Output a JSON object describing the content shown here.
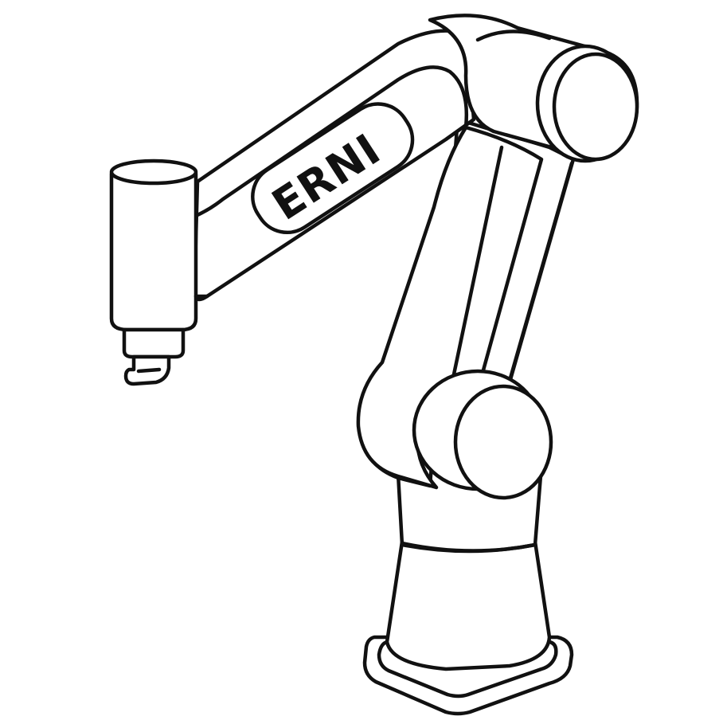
{
  "illustration": {
    "subject": "robot-arm",
    "style": "black line art on white",
    "brand_label": "ERNI",
    "colors": {
      "background": "#ffffff",
      "ink": "#111111"
    }
  }
}
